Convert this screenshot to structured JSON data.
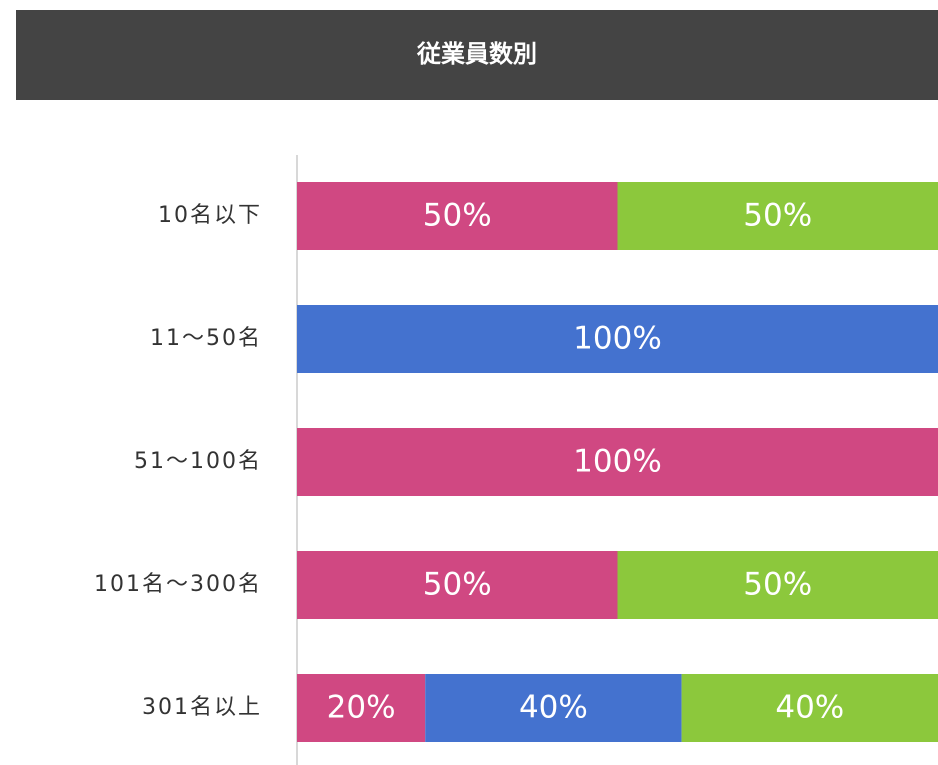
{
  "chart_data": {
    "type": "stacked-bar-horizontal",
    "title": "従業員数別",
    "categories": [
      "10名以下",
      "11～50名",
      "51～100名",
      "101名～300名",
      "301名以上"
    ],
    "series": [
      {
        "color": "#d04882",
        "values": [
          50,
          0,
          100,
          50,
          20
        ],
        "value_labels": [
          "50%",
          null,
          "100%",
          "50%",
          "20%"
        ]
      },
      {
        "color": "#4472cf",
        "values": [
          0,
          100,
          0,
          0,
          40
        ],
        "value_labels": [
          null,
          "100%",
          null,
          null,
          "40%"
        ]
      },
      {
        "color": "#8cc83c",
        "values": [
          50,
          0,
          0,
          50,
          40
        ],
        "value_labels": [
          "50%",
          null,
          null,
          "50%",
          "40%"
        ]
      }
    ],
    "xlim": [
      0,
      100
    ]
  }
}
